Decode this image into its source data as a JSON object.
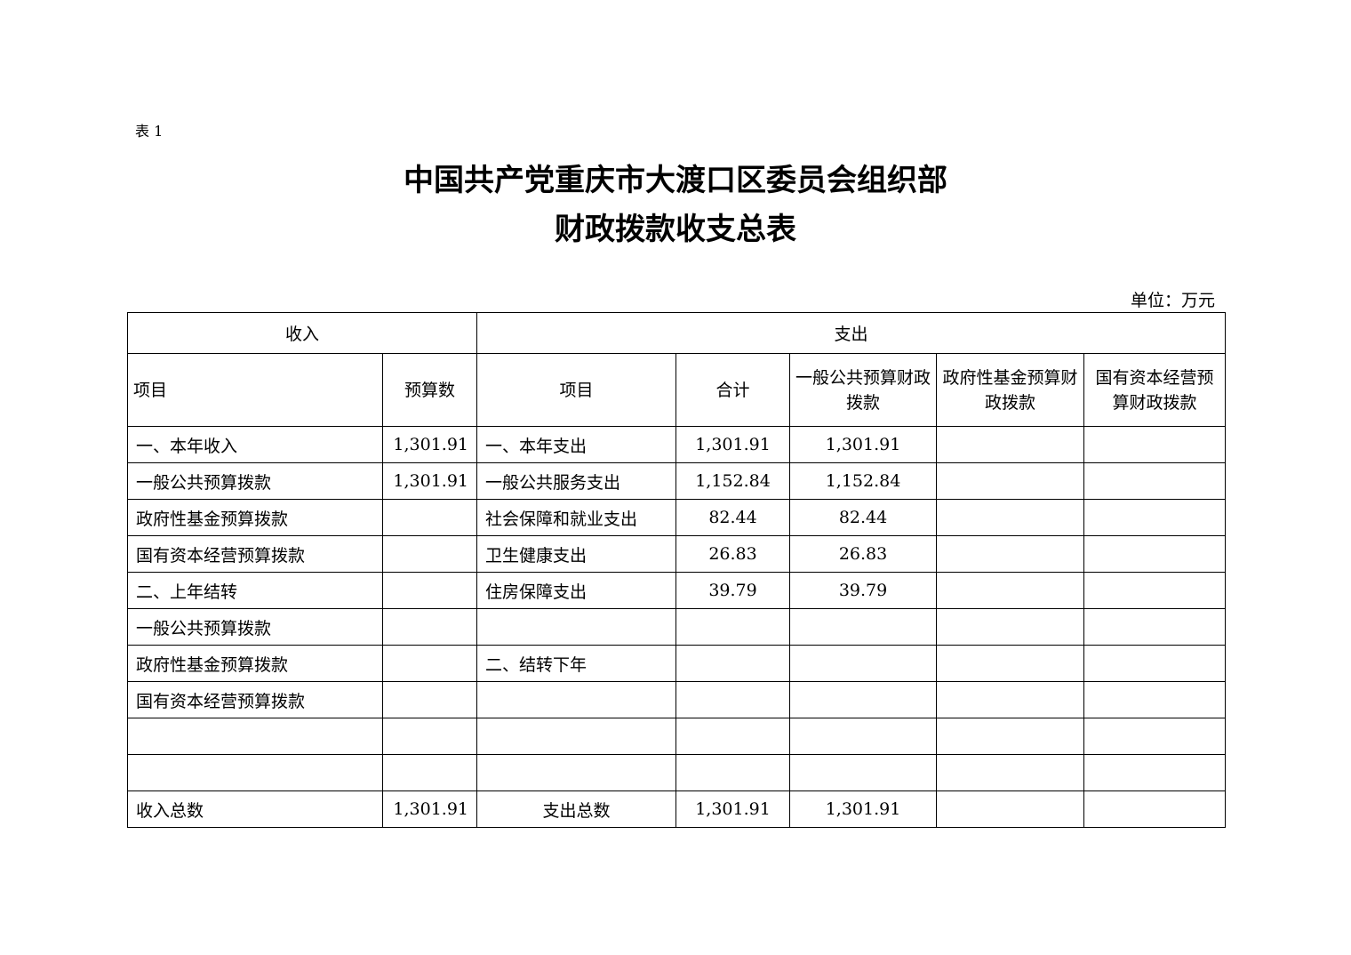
{
  "table_label": "表 1",
  "title_line1": "中国共产党重庆市大渡口区委员会组织部",
  "title_line2": "财政拨款收支总表",
  "unit": "单位：万元",
  "table": {
    "group_headers": {
      "income": "收入",
      "expense": "支出"
    },
    "columns": [
      "项目",
      "预算数",
      "项目",
      "合计",
      "一般公共预算财政拨款",
      "政府性基金预算财政拨款",
      "国有资本经营预算财政拨款"
    ],
    "rows": [
      [
        "一、本年收入",
        "1,301.91",
        "一、本年支出",
        "1,301.91",
        "1,301.91",
        "",
        ""
      ],
      [
        "一般公共预算拨款",
        "1,301.91",
        "一般公共服务支出",
        "1,152.84",
        "1,152.84",
        "",
        ""
      ],
      [
        "政府性基金预算拨款",
        "",
        "社会保障和就业支出",
        "82.44",
        "82.44",
        "",
        ""
      ],
      [
        "国有资本经营预算拨款",
        "",
        "卫生健康支出",
        "26.83",
        "26.83",
        "",
        ""
      ],
      [
        "二、上年结转",
        "",
        "住房保障支出",
        "39.79",
        "39.79",
        "",
        ""
      ],
      [
        "一般公共预算拨款",
        "",
        "",
        "",
        "",
        "",
        ""
      ],
      [
        "政府性基金预算拨款",
        "",
        "二、结转下年",
        "",
        "",
        "",
        ""
      ],
      [
        "国有资本经营预算拨款",
        "",
        "",
        "",
        "",
        "",
        ""
      ],
      [
        "",
        "",
        "",
        "",
        "",
        "",
        ""
      ],
      [
        "",
        "",
        "",
        "",
        "",
        "",
        ""
      ]
    ],
    "total_row": [
      "收入总数",
      "1,301.91",
      "支出总数",
      "1,301.91",
      "1,301.91",
      "",
      ""
    ]
  }
}
